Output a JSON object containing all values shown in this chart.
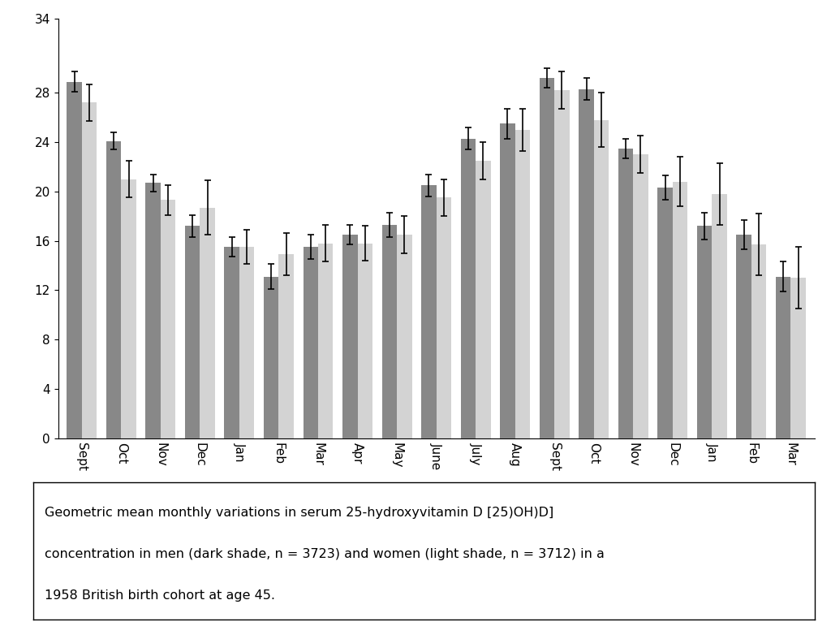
{
  "months": [
    "Sept",
    "Oct",
    "Nov",
    "Dec",
    "Jan",
    "Feb",
    "Mar",
    "Apr",
    "May",
    "June",
    "July",
    "Aug",
    "Sept",
    "Oct",
    "Nov",
    "Dec",
    "Jan",
    "Feb",
    "Mar"
  ],
  "men_values": [
    28.9,
    24.1,
    20.7,
    17.2,
    15.5,
    13.1,
    15.5,
    16.5,
    17.3,
    20.5,
    24.3,
    25.5,
    29.2,
    28.3,
    23.5,
    20.3,
    17.2,
    16.5,
    13.1
  ],
  "women_values": [
    27.2,
    21.0,
    19.3,
    18.7,
    15.5,
    14.9,
    15.8,
    15.8,
    16.5,
    19.5,
    22.5,
    25.0,
    28.2,
    25.8,
    23.0,
    20.8,
    19.8,
    15.7,
    13.0
  ],
  "men_errors": [
    0.8,
    0.7,
    0.7,
    0.9,
    0.8,
    1.0,
    1.0,
    0.8,
    1.0,
    0.9,
    0.9,
    1.2,
    0.8,
    0.9,
    0.8,
    1.0,
    1.1,
    1.2,
    1.2
  ],
  "women_errors": [
    1.5,
    1.5,
    1.2,
    2.2,
    1.4,
    1.7,
    1.5,
    1.4,
    1.5,
    1.5,
    1.5,
    1.7,
    1.5,
    2.2,
    1.5,
    2.0,
    2.5,
    2.5,
    2.5
  ],
  "men_color": "#888888",
  "women_color": "#d3d3d3",
  "bar_width": 0.38,
  "ylim": [
    0,
    34
  ],
  "yticks": [
    0,
    4,
    8,
    12,
    16,
    20,
    24,
    28,
    34
  ],
  "caption_line1": "Geometric mean monthly variations in serum 25-hydroxyvitamin D [25)OH)D]",
  "caption_line2": "concentration in men (dark shade, n = 3723) and women (light shade, n = 3712) in a",
  "caption_line3": "1958 British birth cohort at age 45.",
  "background_color": "#ffffff",
  "error_capsize": 3,
  "error_linewidth": 1.2
}
